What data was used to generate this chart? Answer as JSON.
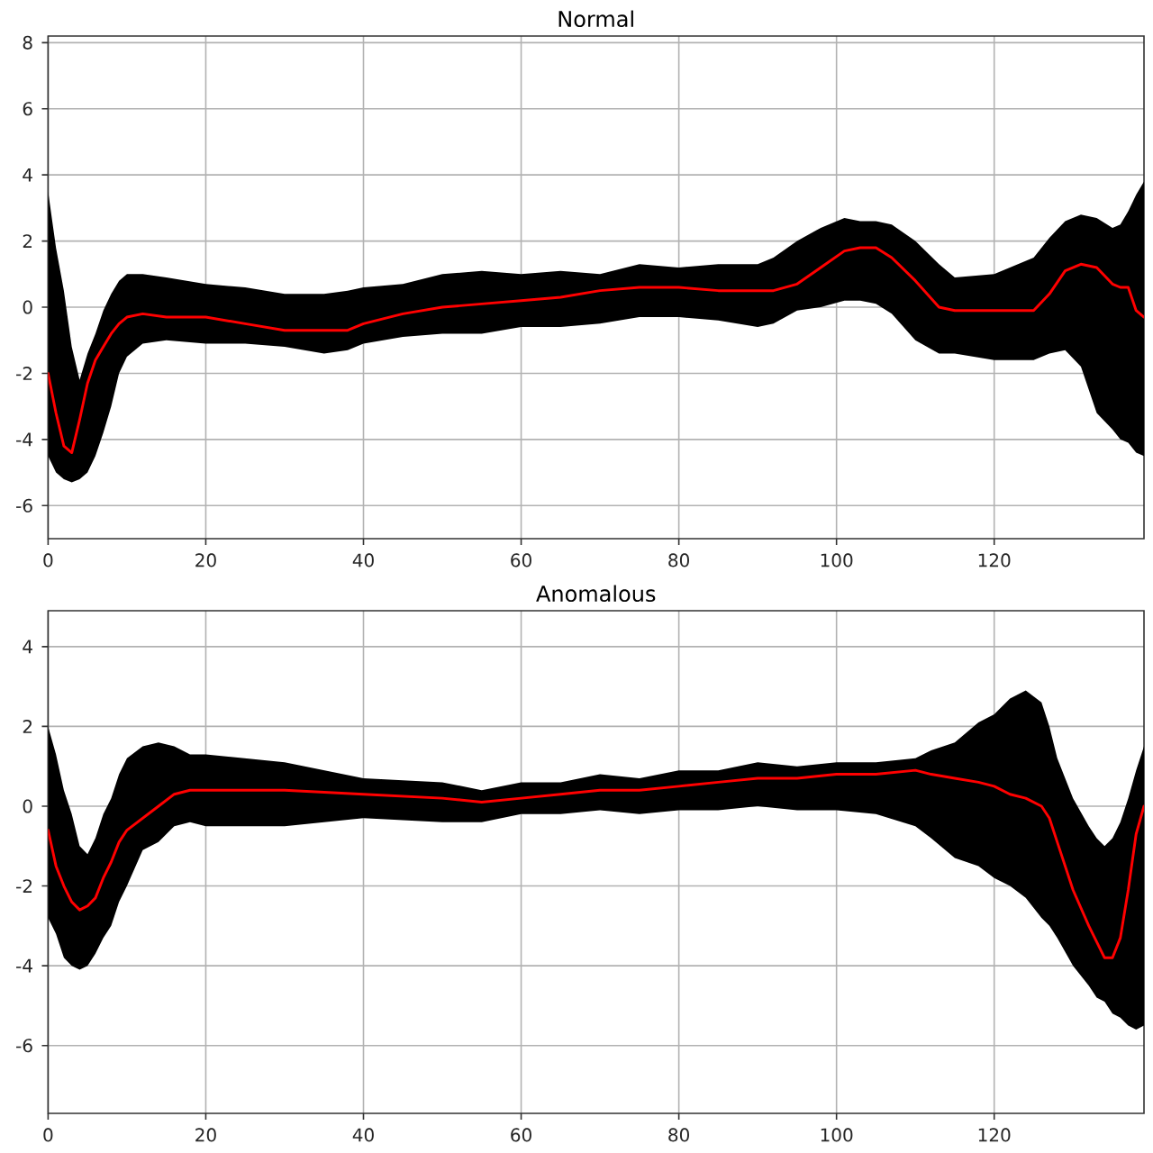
{
  "chart_data": [
    {
      "type": "line",
      "title": "Normal",
      "grid": true,
      "xlim": [
        0,
        139
      ],
      "ylim": [
        -7,
        8.2
      ],
      "xticks": [
        0,
        20,
        40,
        60,
        80,
        100,
        120
      ],
      "yticks": [
        -6,
        -4,
        -2,
        0,
        2,
        4,
        6,
        8
      ],
      "x": [
        0,
        1,
        2,
        3,
        4,
        5,
        6,
        7,
        8,
        9,
        10,
        12,
        15,
        20,
        25,
        30,
        35,
        38,
        40,
        45,
        50,
        55,
        60,
        65,
        70,
        75,
        80,
        85,
        90,
        92,
        95,
        98,
        101,
        103,
        105,
        107,
        110,
        113,
        115,
        120,
        125,
        127,
        129,
        131,
        133,
        135,
        136,
        137,
        138,
        139
      ],
      "series": [
        {
          "color": "#ff0000",
          "values": [
            -2.0,
            -3.2,
            -4.2,
            -4.4,
            -3.4,
            -2.3,
            -1.6,
            -1.2,
            -0.8,
            -0.5,
            -0.3,
            -0.2,
            -0.3,
            -0.3,
            -0.5,
            -0.7,
            -0.7,
            -0.7,
            -0.5,
            -0.2,
            0.0,
            0.1,
            0.2,
            0.3,
            0.5,
            0.6,
            0.6,
            0.5,
            0.5,
            0.5,
            0.7,
            1.2,
            1.7,
            1.8,
            1.8,
            1.5,
            0.8,
            0.0,
            -0.1,
            -0.1,
            -0.1,
            0.4,
            1.1,
            1.3,
            1.2,
            0.7,
            0.6,
            0.6,
            -0.1,
            -0.3
          ],
          "lower": [
            -4.5,
            -5.0,
            -5.2,
            -5.3,
            -5.2,
            -5.0,
            -4.5,
            -3.8,
            -3.0,
            -2.0,
            -1.5,
            -1.1,
            -1.0,
            -1.1,
            -1.1,
            -1.2,
            -1.4,
            -1.3,
            -1.1,
            -0.9,
            -0.8,
            -0.8,
            -0.6,
            -0.6,
            -0.5,
            -0.3,
            -0.3,
            -0.4,
            -0.6,
            -0.5,
            -0.1,
            0.0,
            0.2,
            0.2,
            0.1,
            -0.2,
            -1.0,
            -1.4,
            -1.4,
            -1.6,
            -1.6,
            -1.4,
            -1.3,
            -1.8,
            -3.2,
            -3.7,
            -4.0,
            -4.1,
            -4.4,
            -4.5
          ],
          "upper": [
            3.5,
            1.8,
            0.5,
            -1.2,
            -2.2,
            -1.4,
            -0.8,
            -0.1,
            0.4,
            0.8,
            1.0,
            1.0,
            0.9,
            0.7,
            0.6,
            0.4,
            0.4,
            0.5,
            0.6,
            0.7,
            1.0,
            1.1,
            1.0,
            1.1,
            1.0,
            1.3,
            1.2,
            1.3,
            1.3,
            1.5,
            2.0,
            2.4,
            2.7,
            2.6,
            2.6,
            2.5,
            2.0,
            1.3,
            0.9,
            1.0,
            1.5,
            2.1,
            2.6,
            2.8,
            2.7,
            2.4,
            2.5,
            2.9,
            3.4,
            3.8
          ]
        }
      ]
    },
    {
      "type": "line",
      "title": "Anomalous",
      "grid": true,
      "xlim": [
        0,
        139
      ],
      "ylim": [
        -7.7,
        4.9
      ],
      "xticks": [
        0,
        20,
        40,
        60,
        80,
        100,
        120
      ],
      "yticks": [
        -6,
        -4,
        -2,
        0,
        2,
        4
      ],
      "x": [
        0,
        1,
        2,
        3,
        4,
        5,
        6,
        7,
        8,
        9,
        10,
        12,
        14,
        16,
        18,
        20,
        30,
        40,
        50,
        55,
        60,
        65,
        70,
        75,
        80,
        85,
        90,
        95,
        100,
        105,
        110,
        112,
        115,
        118,
        120,
        122,
        124,
        126,
        127,
        128,
        130,
        132,
        133,
        134,
        135,
        136,
        137,
        138,
        139
      ],
      "series": [
        {
          "color": "#ff0000",
          "values": [
            -0.6,
            -1.5,
            -2.0,
            -2.4,
            -2.6,
            -2.5,
            -2.3,
            -1.8,
            -1.4,
            -0.9,
            -0.6,
            -0.3,
            0.0,
            0.3,
            0.4,
            0.4,
            0.4,
            0.3,
            0.2,
            0.1,
            0.2,
            0.3,
            0.4,
            0.4,
            0.5,
            0.6,
            0.7,
            0.7,
            0.8,
            0.8,
            0.9,
            0.8,
            0.7,
            0.6,
            0.5,
            0.3,
            0.2,
            0.0,
            -0.3,
            -0.9,
            -2.1,
            -3.0,
            -3.4,
            -3.8,
            -3.8,
            -3.3,
            -2.1,
            -0.7,
            0.0
          ],
          "lower": [
            -2.8,
            -3.2,
            -3.8,
            -4.0,
            -4.1,
            -4.0,
            -3.7,
            -3.3,
            -3.0,
            -2.4,
            -2.0,
            -1.1,
            -0.9,
            -0.5,
            -0.4,
            -0.5,
            -0.5,
            -0.3,
            -0.4,
            -0.4,
            -0.2,
            -0.2,
            -0.1,
            -0.2,
            -0.1,
            -0.1,
            0.0,
            -0.1,
            -0.1,
            -0.2,
            -0.5,
            -0.8,
            -1.3,
            -1.5,
            -1.8,
            -2.0,
            -2.3,
            -2.8,
            -3.0,
            -3.3,
            -4.0,
            -4.5,
            -4.8,
            -4.9,
            -5.2,
            -5.3,
            -5.5,
            -5.6,
            -5.5
          ],
          "upper": [
            2.0,
            1.3,
            0.4,
            -0.2,
            -1.0,
            -1.2,
            -0.8,
            -0.2,
            0.2,
            0.8,
            1.2,
            1.5,
            1.6,
            1.5,
            1.3,
            1.3,
            1.1,
            0.7,
            0.6,
            0.4,
            0.6,
            0.6,
            0.8,
            0.7,
            0.9,
            0.9,
            1.1,
            1.0,
            1.1,
            1.1,
            1.2,
            1.4,
            1.6,
            2.1,
            2.3,
            2.7,
            2.9,
            2.6,
            2.0,
            1.2,
            0.2,
            -0.5,
            -0.8,
            -1.0,
            -0.8,
            -0.4,
            0.2,
            0.9,
            1.5
          ]
        }
      ]
    }
  ]
}
